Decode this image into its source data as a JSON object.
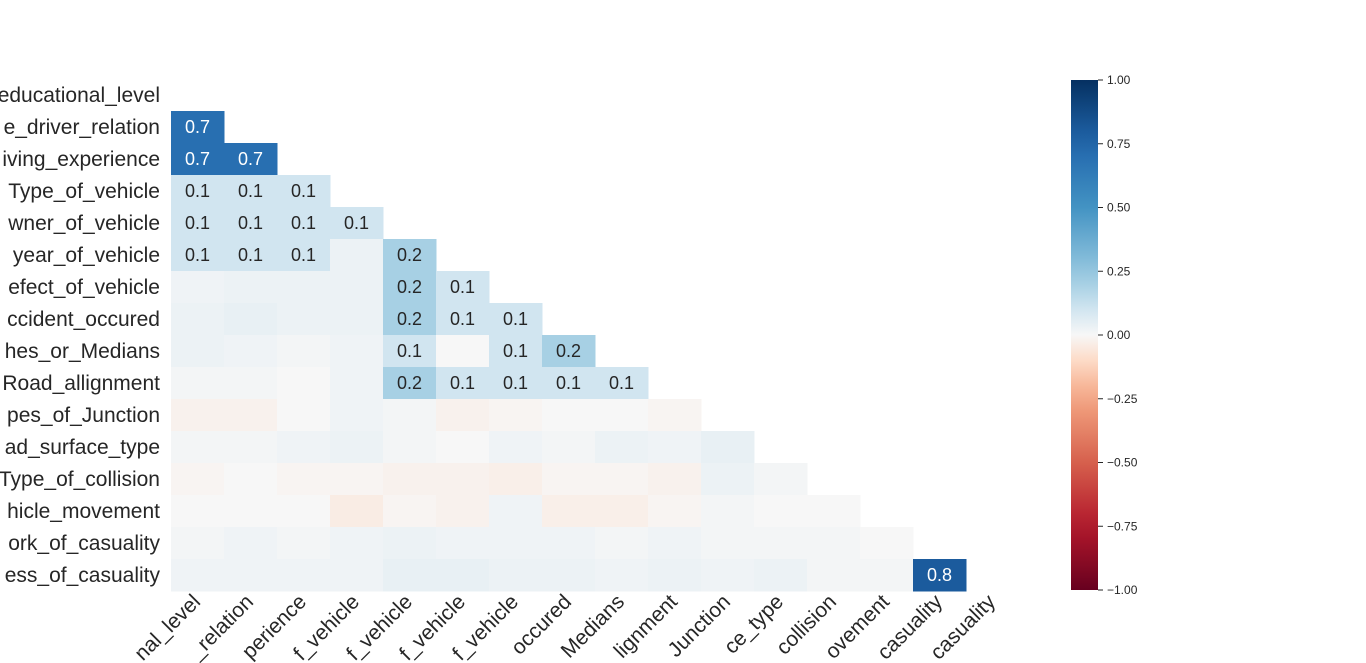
{
  "chart_data": {
    "type": "heatmap",
    "title": "",
    "row_labels": [
      "Educational_level",
      "Vehicle_driver_relation",
      "Driving_experience",
      "Type_of_vehicle",
      "Owner_of_vehicle",
      "Service_year_of_vehicle",
      "Defect_of_vehicle",
      "Area_accident_occured",
      "Lanes_or_Medians",
      "Road_allignment",
      "Types_of_Junction",
      "Road_surface_type",
      "Type_of_collision",
      "Vehicle_movement",
      "Work_of_casuality",
      "Fitness_of_casuality"
    ],
    "row_labels_visible": [
      "educational_level",
      "e_driver_relation",
      "iving_experience",
      "Type_of_vehicle",
      "wner_of_vehicle",
      "year_of_vehicle",
      "efect_of_vehicle",
      "ccident_occured",
      "hes_or_Medians",
      "Road_allignment",
      "pes_of_Junction",
      "ad_surface_type",
      "Type_of_collision",
      "hicle_movement",
      "ork_of_casuality",
      "ess_of_casuality"
    ],
    "col_labels_visible": [
      "nal_level",
      "_relation",
      "perience",
      "f_vehicle",
      "f_vehicle",
      "f_vehicle",
      "f_vehicle",
      "occured",
      "Medians",
      "lignment",
      "Junction",
      "ce_type",
      "collision",
      "ovement",
      "casuality",
      "casuality"
    ],
    "values": [
      [],
      [
        0.7
      ],
      [
        0.7,
        0.7
      ],
      [
        0.1,
        0.1,
        0.1
      ],
      [
        0.1,
        0.1,
        0.1,
        0.1
      ],
      [
        0.1,
        0.1,
        0.1,
        0.03,
        0.2
      ],
      [
        0.02,
        0.03,
        0.03,
        0.03,
        0.2,
        0.1
      ],
      [
        0.03,
        0.04,
        0.03,
        0.03,
        0.2,
        0.1,
        0.1
      ],
      [
        0.03,
        0.02,
        0.01,
        0.02,
        0.1,
        0.0,
        0.1,
        0.2
      ],
      [
        0.01,
        0.01,
        0.0,
        0.02,
        0.2,
        0.1,
        0.1,
        0.1,
        0.1
      ],
      [
        -0.02,
        -0.02,
        0.0,
        0.02,
        0.01,
        -0.02,
        -0.01,
        0.0,
        0.0,
        -0.01
      ],
      [
        0.01,
        0.01,
        0.02,
        0.03,
        0.01,
        0.0,
        0.02,
        0.01,
        0.03,
        0.02,
        0.04
      ],
      [
        -0.01,
        0.0,
        -0.01,
        -0.01,
        -0.02,
        -0.02,
        -0.03,
        -0.01,
        -0.01,
        -0.02,
        0.03,
        0.01
      ],
      [
        0.0,
        0.0,
        0.0,
        -0.04,
        -0.01,
        -0.02,
        0.02,
        -0.03,
        -0.03,
        -0.01,
        0.01,
        0.0,
        0.0
      ],
      [
        0.01,
        0.02,
        0.01,
        0.02,
        0.03,
        0.02,
        0.02,
        0.02,
        0.01,
        0.02,
        0.01,
        0.01,
        0.01,
        0.0
      ],
      [
        0.02,
        0.02,
        0.02,
        0.02,
        0.04,
        0.04,
        0.03,
        0.03,
        0.02,
        0.03,
        0.02,
        0.03,
        0.01,
        0.01,
        0.8
      ]
    ],
    "annotation_threshold": 0.05,
    "colorscale": "RdBu",
    "vmin": -1,
    "vmax": 1,
    "colorbar_ticks": [
      "1.00",
      "0.75",
      "0.50",
      "0.25",
      "0.00",
      "−0.25",
      "−0.50",
      "−0.75",
      "−1.00"
    ],
    "colorbar_tick_values": [
      1,
      0.75,
      0.5,
      0.25,
      0,
      -0.25,
      -0.5,
      -0.75,
      -1
    ]
  }
}
